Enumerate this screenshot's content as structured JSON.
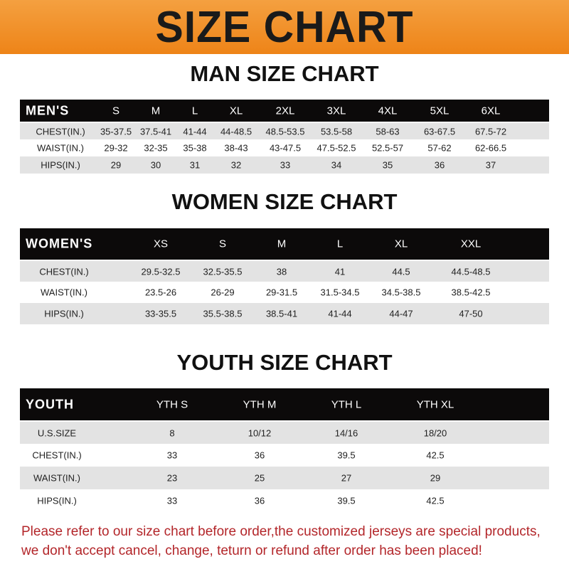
{
  "banner_title": "SIZE CHART",
  "men": {
    "title": "MAN SIZE CHART",
    "header": [
      "MEN'S",
      "S",
      "M",
      "L",
      "XL",
      "2XL",
      "3XL",
      "4XL",
      "5XL",
      "6XL"
    ],
    "rows": [
      [
        "CHEST(IN.)",
        "35-37.5",
        "37.5-41",
        "41-44",
        "44-48.5",
        "48.5-53.5",
        "53.5-58",
        "58-63",
        "63-67.5",
        "67.5-72"
      ],
      [
        "WAIST(IN.)",
        "29-32",
        "32-35",
        "35-38",
        "38-43",
        "43-47.5",
        "47.5-52.5",
        "52.5-57",
        "57-62",
        "62-66.5"
      ],
      [
        "HIPS(IN.)",
        "29",
        "30",
        "31",
        "32",
        "33",
        "34",
        "35",
        "36",
        "37"
      ]
    ]
  },
  "women": {
    "title": "WOMEN SIZE CHART",
    "header": [
      "WOMEN'S",
      "XS",
      "S",
      "M",
      "L",
      "XL",
      "XXL"
    ],
    "rows": [
      [
        "CHEST(IN.)",
        "29.5-32.5",
        "32.5-35.5",
        "38",
        "41",
        "44.5",
        "44.5-48.5"
      ],
      [
        "WAIST(IN.)",
        "23.5-26",
        "26-29",
        "29-31.5",
        "31.5-34.5",
        "34.5-38.5",
        "38.5-42.5"
      ],
      [
        "HIPS(IN.)",
        "33-35.5",
        "35.5-38.5",
        "38.5-41",
        "41-44",
        "44-47",
        "47-50"
      ]
    ]
  },
  "youth": {
    "title": "YOUTH SIZE CHART",
    "header": [
      "YOUTH",
      "YTH S",
      "YTH M",
      "YTH L",
      "YTH XL"
    ],
    "rows": [
      [
        "U.S.SIZE",
        "8",
        "10/12",
        "14/16",
        "18/20"
      ],
      [
        "CHEST(IN.)",
        "33",
        "36",
        "39.5",
        "42.5"
      ],
      [
        "WAIST(IN.)",
        "23",
        "25",
        "27",
        "29"
      ],
      [
        "HIPS(IN.)",
        "33",
        "36",
        "39.5",
        "42.5"
      ]
    ]
  },
  "footer": {
    "line1": "Please refer to our size chart before order,the customized jerseys are special products,",
    "line2": "we don't accept cancel, change, teturn or refund after order has been placed!"
  },
  "colors": {
    "banner": "#ee8418",
    "header_row": "#0c0a0a",
    "stripe": "#e3e3e3",
    "footer_text": "#b3262a"
  }
}
